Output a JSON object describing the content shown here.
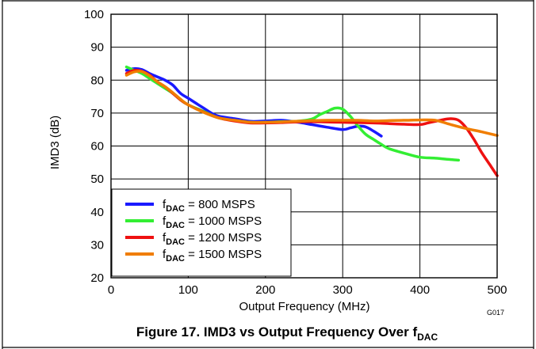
{
  "chart_data": {
    "type": "line",
    "xlabel": "Output Frequency (MHz)",
    "ylabel": "IMD3 (dB)",
    "xlim": [
      0,
      500
    ],
    "ylim": [
      20,
      100
    ],
    "xticks": [
      0,
      100,
      200,
      300,
      400,
      500
    ],
    "yticks": [
      20,
      30,
      40,
      50,
      60,
      70,
      80,
      90,
      100
    ],
    "grid": true,
    "legend_position": "bottom-left",
    "figure_code": "G017",
    "caption": {
      "prefix": "Figure 17. IMD3 vs Output Frequency Over f",
      "subscript": "DAC"
    },
    "series": [
      {
        "label_main": "f",
        "label_sub": "DAC",
        "label_rest": " = 800 MSPS",
        "color": "#1a1aff",
        "points": [
          [
            20,
            83
          ],
          [
            30,
            83.5
          ],
          [
            40,
            83.2
          ],
          [
            50,
            82
          ],
          [
            60,
            81
          ],
          [
            70,
            80
          ],
          [
            80,
            78.5
          ],
          [
            90,
            76
          ],
          [
            100,
            74.5
          ],
          [
            110,
            73
          ],
          [
            120,
            71.5
          ],
          [
            130,
            70
          ],
          [
            140,
            69
          ],
          [
            160,
            68.3
          ],
          [
            180,
            67.5
          ],
          [
            200,
            67.6
          ],
          [
            220,
            67.8
          ],
          [
            240,
            67.3
          ],
          [
            260,
            66.5
          ],
          [
            280,
            65.7
          ],
          [
            300,
            65
          ],
          [
            310,
            65.5
          ],
          [
            320,
            66
          ],
          [
            330,
            65.8
          ],
          [
            340,
            64.5
          ],
          [
            350,
            63
          ]
        ]
      },
      {
        "label_main": "f",
        "label_sub": "DAC",
        "label_rest": " = 1000 MSPS",
        "color": "#33ee33",
        "points": [
          [
            20,
            84
          ],
          [
            30,
            83
          ],
          [
            40,
            82
          ],
          [
            50,
            80.5
          ],
          [
            60,
            79
          ],
          [
            70,
            77.5
          ],
          [
            80,
            76
          ],
          [
            90,
            74
          ],
          [
            100,
            72.5
          ],
          [
            120,
            70.5
          ],
          [
            140,
            68.5
          ],
          [
            160,
            67.8
          ],
          [
            180,
            67.2
          ],
          [
            200,
            67.2
          ],
          [
            220,
            67.4
          ],
          [
            240,
            67.5
          ],
          [
            260,
            68.2
          ],
          [
            270,
            69.5
          ],
          [
            280,
            70.5
          ],
          [
            290,
            71.5
          ],
          [
            300,
            71.2
          ],
          [
            310,
            69
          ],
          [
            320,
            66
          ],
          [
            330,
            63.5
          ],
          [
            340,
            62
          ],
          [
            350,
            60.5
          ],
          [
            360,
            59.2
          ],
          [
            380,
            57.8
          ],
          [
            400,
            56.6
          ],
          [
            420,
            56.3
          ],
          [
            440,
            55.9
          ],
          [
            450,
            55.7
          ]
        ]
      },
      {
        "label_main": "f",
        "label_sub": "DAC",
        "label_rest": " = 1200 MSPS",
        "color": "#ee1111",
        "points": [
          [
            20,
            82
          ],
          [
            30,
            83
          ],
          [
            40,
            82.7
          ],
          [
            50,
            81.5
          ],
          [
            60,
            79.5
          ],
          [
            70,
            78
          ],
          [
            80,
            76
          ],
          [
            90,
            74
          ],
          [
            100,
            72.5
          ],
          [
            120,
            70.3
          ],
          [
            140,
            68.5
          ],
          [
            160,
            67.6
          ],
          [
            180,
            67
          ],
          [
            200,
            67
          ],
          [
            220,
            67.1
          ],
          [
            240,
            67.3
          ],
          [
            260,
            67.4
          ],
          [
            280,
            67.3
          ],
          [
            300,
            67.2
          ],
          [
            320,
            67.1
          ],
          [
            340,
            67
          ],
          [
            360,
            66.8
          ],
          [
            380,
            66.6
          ],
          [
            400,
            66.5
          ],
          [
            410,
            67
          ],
          [
            420,
            67.5
          ],
          [
            430,
            68
          ],
          [
            440,
            68.3
          ],
          [
            450,
            67.8
          ],
          [
            460,
            65.5
          ],
          [
            470,
            62
          ],
          [
            480,
            58
          ],
          [
            490,
            54.5
          ],
          [
            500,
            51
          ]
        ]
      },
      {
        "label_main": "f",
        "label_sub": "DAC",
        "label_rest": " = 1500 MSPS",
        "color": "#f07d00",
        "points": [
          [
            20,
            81.5
          ],
          [
            30,
            82.5
          ],
          [
            40,
            82.6
          ],
          [
            50,
            81.3
          ],
          [
            60,
            79.5
          ],
          [
            70,
            78
          ],
          [
            80,
            76.2
          ],
          [
            90,
            74.2
          ],
          [
            100,
            72.5
          ],
          [
            120,
            70.2
          ],
          [
            140,
            68.5
          ],
          [
            160,
            67.8
          ],
          [
            180,
            67.2
          ],
          [
            200,
            67.2
          ],
          [
            220,
            67.3
          ],
          [
            240,
            67.5
          ],
          [
            260,
            67.7
          ],
          [
            280,
            67.8
          ],
          [
            300,
            67.8
          ],
          [
            320,
            67.8
          ],
          [
            340,
            67.6
          ],
          [
            360,
            67.7
          ],
          [
            380,
            67.8
          ],
          [
            400,
            67.9
          ],
          [
            420,
            67.8
          ],
          [
            440,
            66.5
          ],
          [
            460,
            65.3
          ],
          [
            480,
            64.3
          ],
          [
            500,
            63.2
          ]
        ]
      }
    ]
  }
}
